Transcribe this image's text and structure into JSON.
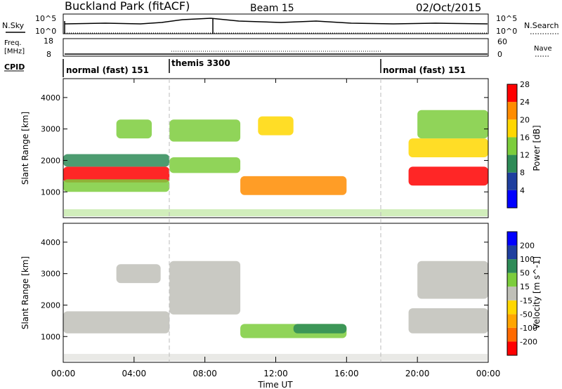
{
  "header": {
    "station": "Buckland Park (fitACF)",
    "beam": "Beam 15",
    "date": "02/Oct/2015"
  },
  "noise_panel": {
    "left_label": "N.Sky",
    "right_label": "N.Search",
    "left_ticks": [
      "10^5",
      "10^0"
    ],
    "right_ticks": [
      "10^5",
      "10^0"
    ]
  },
  "freq_panel": {
    "left_label_1": "Freq.",
    "left_label_2": "[MHz]",
    "left_ticks": [
      "18",
      "8"
    ],
    "right_label": "Nave",
    "right_ticks": [
      "60",
      "0"
    ]
  },
  "cpid_panel": {
    "label": "CPID",
    "segments": [
      {
        "label": "normal (fast) 151",
        "start": 0,
        "end": 6
      },
      {
        "label": "themis 3300",
        "start": 6,
        "end": 18
      },
      {
        "label": "normal (fast) 151",
        "start": 18,
        "end": 24
      }
    ]
  },
  "chart_data": [
    {
      "type": "heatmap",
      "name": "power",
      "ylabel": "Slant Range [km]",
      "ylim": [
        180,
        4600
      ],
      "yticks": [
        1000,
        2000,
        3000,
        4000
      ],
      "colorbar_label": "Power [dB]",
      "colorbar_ticks": [
        "4",
        "8",
        "12",
        "16",
        "20",
        "24",
        "28"
      ],
      "colors": [
        "#0000ff",
        "#1f3f9f",
        "#2e8b57",
        "#7ccd3c",
        "#ffd700",
        "#ff8c00",
        "#ff0000"
      ],
      "bands": [
        {
          "t": [
            0,
            6
          ],
          "r": [
            1300,
            1800
          ],
          "level": 6
        },
        {
          "t": [
            0,
            6
          ],
          "r": [
            1000,
            1400
          ],
          "level": 3
        },
        {
          "t": [
            0,
            6
          ],
          "r": [
            1800,
            2200
          ],
          "level": 2
        },
        {
          "t": [
            3,
            5
          ],
          "r": [
            2700,
            3300
          ],
          "level": 3
        },
        {
          "t": [
            6,
            10
          ],
          "r": [
            1600,
            2100
          ],
          "level": 3
        },
        {
          "t": [
            6,
            10
          ],
          "r": [
            2600,
            3300
          ],
          "level": 3
        },
        {
          "t": [
            10,
            16
          ],
          "r": [
            900,
            1500
          ],
          "level": 5
        },
        {
          "t": [
            11,
            13
          ],
          "r": [
            2800,
            3400
          ],
          "level": 4
        },
        {
          "t": [
            19.5,
            24
          ],
          "r": [
            1200,
            1800
          ],
          "level": 6
        },
        {
          "t": [
            19.5,
            24
          ],
          "r": [
            2100,
            2700
          ],
          "level": 4
        },
        {
          "t": [
            20,
            24
          ],
          "r": [
            2700,
            3600
          ],
          "level": 3
        }
      ]
    },
    {
      "type": "heatmap",
      "name": "velocity",
      "ylabel": "Slant Range [km]",
      "xlabel": "Time UT",
      "ylim": [
        180,
        4600
      ],
      "yticks": [
        1000,
        2000,
        3000,
        4000
      ],
      "xticks": [
        "00:00",
        "04:00",
        "08:00",
        "12:00",
        "16:00",
        "20:00",
        "00:00"
      ],
      "xlim": [
        0,
        24
      ],
      "colorbar_label": "Velocity [m s^-1]",
      "colorbar_ticks": [
        "-200",
        "-100",
        "-50",
        "-15",
        "15",
        "50",
        "100",
        "200"
      ],
      "colors": [
        "#ff0000",
        "#ff6a00",
        "#ffa500",
        "#ffd700",
        "#c0c0b8",
        "#7ccd3c",
        "#2e8b57",
        "#1f3f9f",
        "#0000ff"
      ],
      "bands": [
        {
          "t": [
            0,
            6
          ],
          "r": [
            1100,
            1800
          ],
          "level": 4
        },
        {
          "t": [
            3,
            5.5
          ],
          "r": [
            2700,
            3300
          ],
          "level": 4
        },
        {
          "t": [
            6,
            10
          ],
          "r": [
            1700,
            3400
          ],
          "level": 4
        },
        {
          "t": [
            10,
            16
          ],
          "r": [
            950,
            1400
          ],
          "level": 5
        },
        {
          "t": [
            13,
            16
          ],
          "r": [
            1100,
            1400
          ],
          "level": 6
        },
        {
          "t": [
            19.5,
            24
          ],
          "r": [
            1100,
            1900
          ],
          "level": 4
        },
        {
          "t": [
            20,
            24
          ],
          "r": [
            2200,
            3400
          ],
          "level": 4
        }
      ]
    }
  ]
}
